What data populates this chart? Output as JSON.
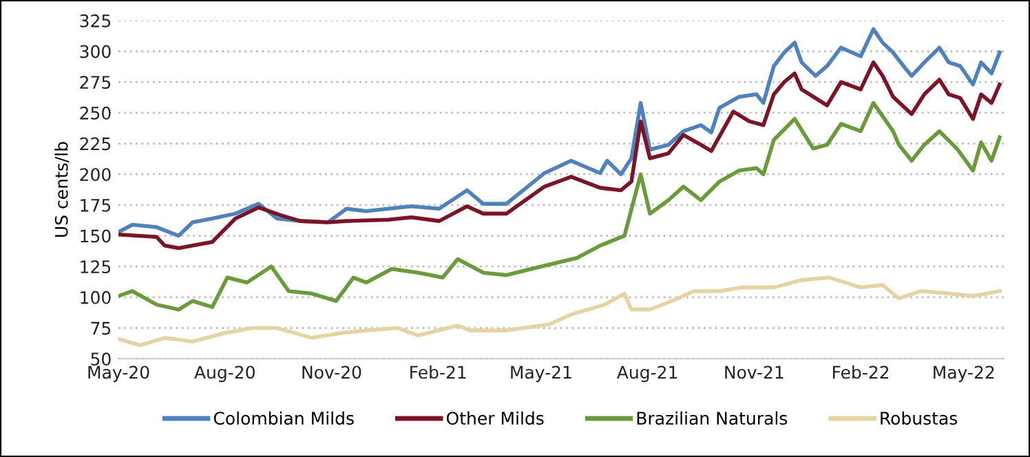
{
  "chart_data": {
    "type": "line",
    "ylabel": "US cents/lb",
    "ylim": [
      50,
      325
    ],
    "yticks": [
      50,
      75,
      100,
      125,
      150,
      175,
      200,
      225,
      250,
      275,
      300,
      325
    ],
    "xlim": [
      "2020-05-01",
      "2022-06-05"
    ],
    "xticks": [
      {
        "value": "2020-05-01",
        "label": "May-20"
      },
      {
        "value": "2020-08-01",
        "label": "Aug-20"
      },
      {
        "value": "2020-11-01",
        "label": "Nov-20"
      },
      {
        "value": "2021-02-01",
        "label": "Feb-21"
      },
      {
        "value": "2021-05-01",
        "label": "May-21"
      },
      {
        "value": "2021-08-01",
        "label": "Aug-21"
      },
      {
        "value": "2021-11-01",
        "label": "Nov-21"
      },
      {
        "value": "2022-02-01",
        "label": "Feb-22"
      },
      {
        "value": "2022-05-01",
        "label": "May-22"
      }
    ],
    "grid": "y",
    "legend": "bottom",
    "line_style": "solid",
    "marker": "none",
    "series": [
      {
        "name": "Colombian Milds",
        "color": "#4f81bd",
        "x": [
          "2020-05-01",
          "2020-05-13",
          "2020-06-03",
          "2020-06-22",
          "2020-07-04",
          "2020-07-21",
          "2020-08-10",
          "2020-08-30",
          "2020-09-15",
          "2020-10-05",
          "2020-10-29",
          "2020-11-14",
          "2020-12-01",
          "2020-12-20",
          "2021-01-09",
          "2021-02-02",
          "2021-02-26",
          "2021-03-12",
          "2021-04-01",
          "2021-05-04",
          "2021-05-27",
          "2021-06-21",
          "2021-06-27",
          "2021-07-09",
          "2021-07-18",
          "2021-07-26",
          "2021-08-03",
          "2021-08-19",
          "2021-09-01",
          "2021-09-16",
          "2021-09-25",
          "2021-10-02",
          "2021-10-19",
          "2021-11-03",
          "2021-11-09",
          "2021-11-18",
          "2021-11-27",
          "2021-12-06",
          "2021-12-12",
          "2021-12-24",
          "2022-01-03",
          "2022-01-15",
          "2022-02-01",
          "2022-02-12",
          "2022-02-20",
          "2022-03-01",
          "2022-03-10",
          "2022-03-17",
          "2022-03-28",
          "2022-04-10",
          "2022-04-18",
          "2022-04-28",
          "2022-05-09",
          "2022-05-16",
          "2022-05-25",
          "2022-06-01"
        ],
        "values": [
          153,
          159,
          157,
          150,
          161,
          164,
          168,
          176,
          164,
          162,
          161,
          172,
          170,
          172,
          174,
          172,
          187,
          176,
          176,
          201,
          211,
          201,
          211,
          200,
          213,
          258,
          220,
          224,
          235,
          240,
          234,
          254,
          263,
          265,
          258,
          288,
          299,
          307,
          291,
          280,
          288,
          303,
          296,
          318,
          307,
          299,
          288,
          280,
          291,
          303,
          291,
          288,
          273,
          291,
          282,
          299
        ]
      },
      {
        "name": "Other Milds",
        "color": "#7b1427",
        "x": [
          "2020-05-01",
          "2020-06-03",
          "2020-06-10",
          "2020-06-22",
          "2020-07-21",
          "2020-08-10",
          "2020-08-30",
          "2020-09-17",
          "2020-10-05",
          "2020-10-29",
          "2020-11-14",
          "2020-12-20",
          "2021-01-09",
          "2021-02-02",
          "2021-02-26",
          "2021-03-12",
          "2021-04-01",
          "2021-05-04",
          "2021-05-27",
          "2021-06-21",
          "2021-07-09",
          "2021-07-18",
          "2021-07-26",
          "2021-08-03",
          "2021-08-19",
          "2021-09-01",
          "2021-09-16",
          "2021-09-25",
          "2021-10-14",
          "2021-10-28",
          "2021-11-09",
          "2021-11-18",
          "2021-11-27",
          "2021-12-06",
          "2021-12-12",
          "2022-01-03",
          "2022-01-15",
          "2022-02-01",
          "2022-02-12",
          "2022-02-20",
          "2022-03-01",
          "2022-03-17",
          "2022-03-28",
          "2022-04-10",
          "2022-04-18",
          "2022-04-28",
          "2022-05-09",
          "2022-05-16",
          "2022-05-25",
          "2022-06-01"
        ],
        "values": [
          151,
          149,
          142,
          140,
          145,
          164,
          173,
          167,
          162,
          161,
          162,
          163,
          165,
          162,
          174,
          168,
          168,
          190,
          198,
          189,
          187,
          194,
          243,
          213,
          217,
          232,
          224,
          219,
          251,
          243,
          240,
          265,
          275,
          282,
          269,
          256,
          275,
          269,
          291,
          280,
          263,
          249,
          265,
          277,
          265,
          262,
          245,
          265,
          258,
          273
        ]
      },
      {
        "name": "Brazilian Naturals",
        "color": "#6a9a3a",
        "x": [
          "2020-05-01",
          "2020-05-13",
          "2020-06-03",
          "2020-06-22",
          "2020-07-04",
          "2020-07-21",
          "2020-08-03",
          "2020-08-20",
          "2020-09-10",
          "2020-09-25",
          "2020-10-15",
          "2020-11-05",
          "2020-11-20",
          "2020-12-01",
          "2020-12-23",
          "2021-01-15",
          "2021-02-05",
          "2021-02-18",
          "2021-03-12",
          "2021-04-01",
          "2021-05-01",
          "2021-06-01",
          "2021-06-21",
          "2021-07-12",
          "2021-07-26",
          "2021-08-03",
          "2021-08-19",
          "2021-09-01",
          "2021-09-16",
          "2021-10-02",
          "2021-10-19",
          "2021-11-03",
          "2021-11-09",
          "2021-11-18",
          "2021-12-06",
          "2021-12-22",
          "2022-01-03",
          "2022-01-15",
          "2022-02-01",
          "2022-02-12",
          "2022-03-01",
          "2022-03-06",
          "2022-03-17",
          "2022-03-28",
          "2022-04-10",
          "2022-04-25",
          "2022-05-09",
          "2022-05-16",
          "2022-05-25",
          "2022-06-01"
        ],
        "values": [
          101,
          105,
          94,
          90,
          97,
          92,
          116,
          112,
          125,
          105,
          103,
          97,
          116,
          112,
          123,
          120,
          116,
          131,
          120,
          118,
          125,
          132,
          142,
          150,
          200,
          168,
          179,
          190,
          179,
          194,
          203,
          205,
          200,
          228,
          245,
          221,
          224,
          241,
          235,
          258,
          235,
          224,
          211,
          224,
          235,
          221,
          203,
          226,
          211,
          230
        ]
      },
      {
        "name": "Robustas",
        "color": "#e6d3a3",
        "x": [
          "2020-05-01",
          "2020-05-20",
          "2020-06-10",
          "2020-07-04",
          "2020-08-01",
          "2020-08-25",
          "2020-09-15",
          "2020-10-15",
          "2020-11-10",
          "2020-12-01",
          "2020-12-28",
          "2021-01-15",
          "2021-02-18",
          "2021-03-01",
          "2021-04-01",
          "2021-05-08",
          "2021-05-27",
          "2021-06-25",
          "2021-07-12",
          "2021-07-18",
          "2021-08-03",
          "2021-08-22",
          "2021-09-10",
          "2021-10-02",
          "2021-10-22",
          "2021-11-18",
          "2021-12-12",
          "2022-01-05",
          "2022-02-01",
          "2022-02-20",
          "2022-03-06",
          "2022-03-25",
          "2022-04-18",
          "2022-05-09",
          "2022-06-01"
        ],
        "values": [
          66,
          61,
          67,
          64,
          71,
          75,
          75,
          67,
          71,
          73,
          75,
          69,
          77,
          73,
          73,
          78,
          86,
          94,
          103,
          90,
          90,
          97,
          105,
          105,
          108,
          108,
          114,
          116,
          108,
          110,
          99,
          105,
          103,
          101,
          105
        ]
      }
    ]
  }
}
